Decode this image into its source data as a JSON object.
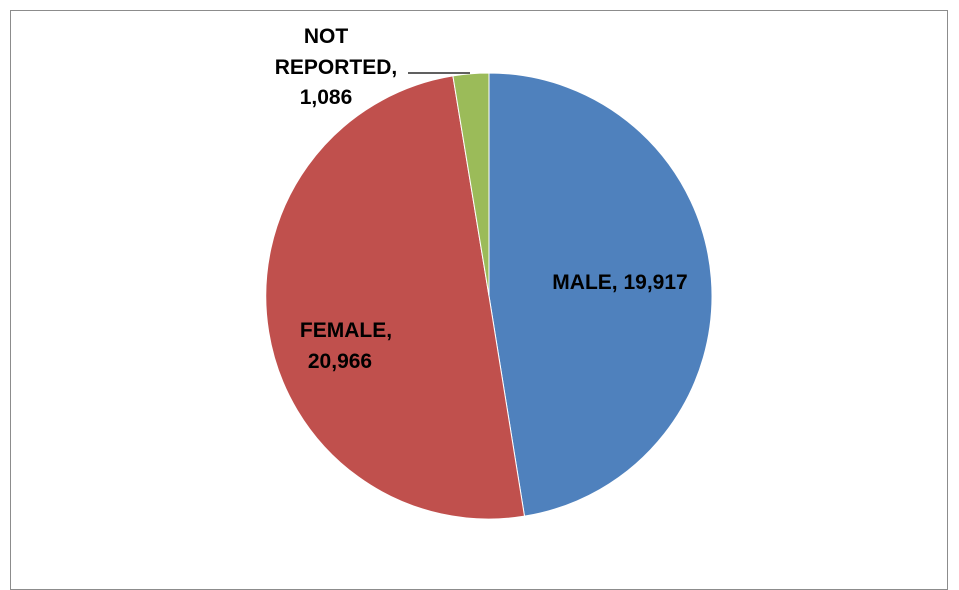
{
  "chart_data": {
    "type": "pie",
    "title": "",
    "slices": [
      {
        "label": "MALE",
        "value": 19917,
        "value_text": "19,917",
        "color": "#4F81BD"
      },
      {
        "label": "FEMALE",
        "value": 20966,
        "value_text": "20,966",
        "color": "#C0504D"
      },
      {
        "label": "NOT REPORTED",
        "value": 1086,
        "value_text": "1,086",
        "color": "#9BBB59"
      }
    ],
    "start_angle_deg": 0,
    "direction": "clockwise",
    "legend": "none",
    "label_text": {
      "male": "MALE, 19,917",
      "female_line1": "FEMALE,",
      "female_line2": "20,966",
      "nr_line1": "NOT",
      "nr_line2": "REPORTED,",
      "nr_line3": "1,086"
    }
  }
}
